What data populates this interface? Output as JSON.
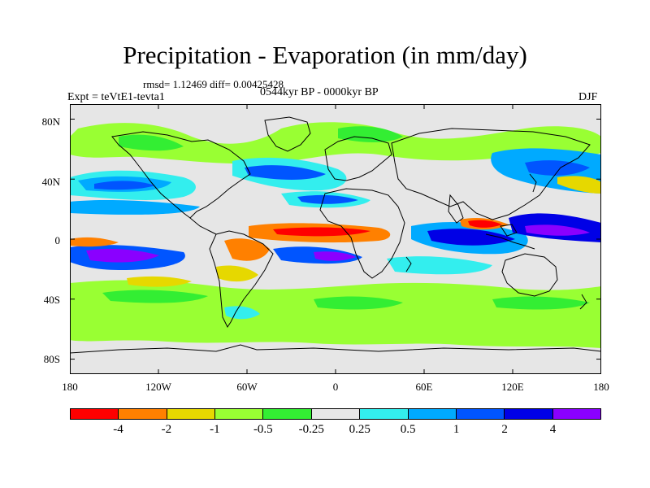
{
  "title": "Precipitation - Evaporation (in mm/day)",
  "stats": "rmsd= 1.12469 diff= 0.00425428",
  "experiment": "Expt = teVtE1-tevta1",
  "period": "0544kyr BP - 0000kyr BP",
  "season": "DJF",
  "map": {
    "projection": "cylindrical-equidistant",
    "lon_range": [
      -180,
      180
    ],
    "lat_range": [
      -90,
      90
    ],
    "ocean_land_background": "#e6e6e6",
    "coastline_color": "#000000",
    "lat_labels": [
      "80N",
      "40N",
      "0",
      "40S",
      "80S"
    ],
    "lon_labels": [
      "180",
      "120W",
      "60W",
      "0",
      "60E",
      "120E",
      "180"
    ]
  },
  "colorbar": {
    "colors": [
      "#ff0000",
      "#ff8000",
      "#e6d800",
      "#99ff33",
      "#33ee33",
      "#e6e6e6",
      "#33eeee",
      "#00aaff",
      "#0055ff",
      "#0000e6",
      "#8a00ff"
    ],
    "labels": [
      "-4",
      "-2",
      "-1",
      "-0.5",
      "-0.25",
      "0.25",
      "0.5",
      "1",
      "2",
      "4"
    ]
  }
}
